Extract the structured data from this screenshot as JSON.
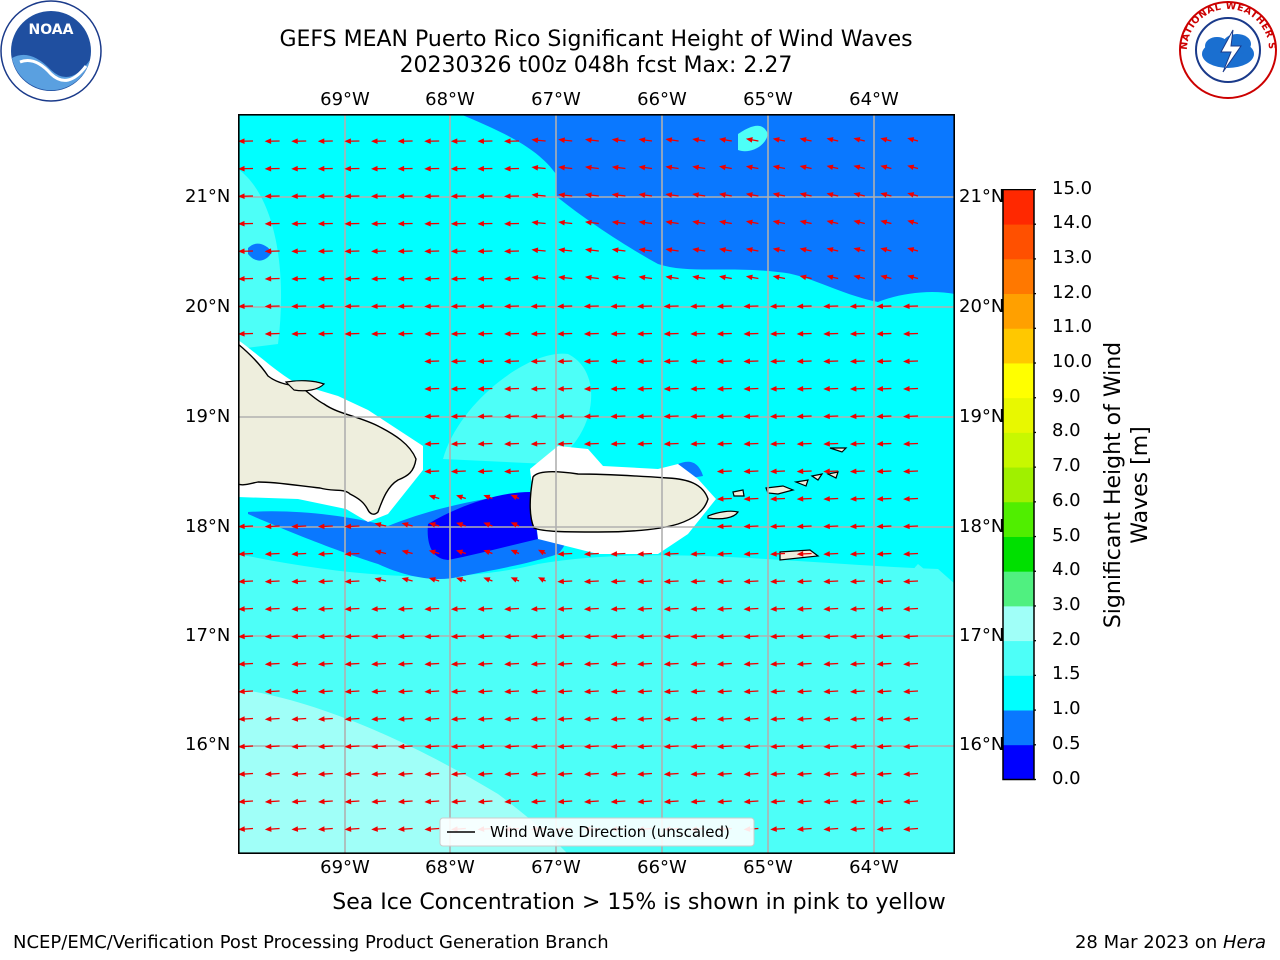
{
  "title": {
    "line1": "GEFS MEAN Puerto Rico Significant Height of Wind Waves",
    "line2": "20230326 t00z 048h fcst   Max: 2.27"
  },
  "lon_labels": [
    "69°W",
    "68°W",
    "67°W",
    "66°W",
    "65°W",
    "64°W"
  ],
  "lat_labels": [
    "21°N",
    "20°N",
    "19°N",
    "18°N",
    "17°N",
    "16°N"
  ],
  "legend": {
    "label": "Wind Wave Direction (unscaled)"
  },
  "colorbar": {
    "label": "Significant Height of Wind Waves [m]",
    "ticks": [
      "0.0",
      "0.5",
      "1.0",
      "1.5",
      "2.0",
      "3.0",
      "4.0",
      "5.0",
      "6.0",
      "7.0",
      "8.0",
      "9.0",
      "10.0",
      "11.0",
      "12.0",
      "13.0",
      "14.0",
      "15.0"
    ],
    "colors": [
      "#0000ff",
      "#0a78ff",
      "#00ffff",
      "#4dfff8",
      "#a0fff8",
      "#50f080",
      "#00e000",
      "#50ee00",
      "#a0f000",
      "#c8f800",
      "#e8f800",
      "#ffff00",
      "#ffc800",
      "#ffa000",
      "#ff7800",
      "#ff5000",
      "#ff2800"
    ]
  },
  "map_colors": {
    "land": "#eeeedd",
    "band_0_0_5": "#0000ff",
    "band_0_5_1_0": "#0a78ff",
    "band_1_0_1_5": "#00ffff",
    "band_1_5_2_0": "#4dfff8",
    "band_2_0_3_0": "#a0fff8",
    "arrow": "#ee0000"
  },
  "sea_ice_note": "Sea Ice Concentration > 15% is shown in pink to yellow",
  "footer": {
    "left": "NCEP/EMC/Verification Post Processing Product Generation Branch",
    "right_date": "28 Mar 2023 on ",
    "right_host": "Hera"
  },
  "logos": {
    "left": "NOAA",
    "right": "NATIONAL WEATHER SERVICE"
  }
}
